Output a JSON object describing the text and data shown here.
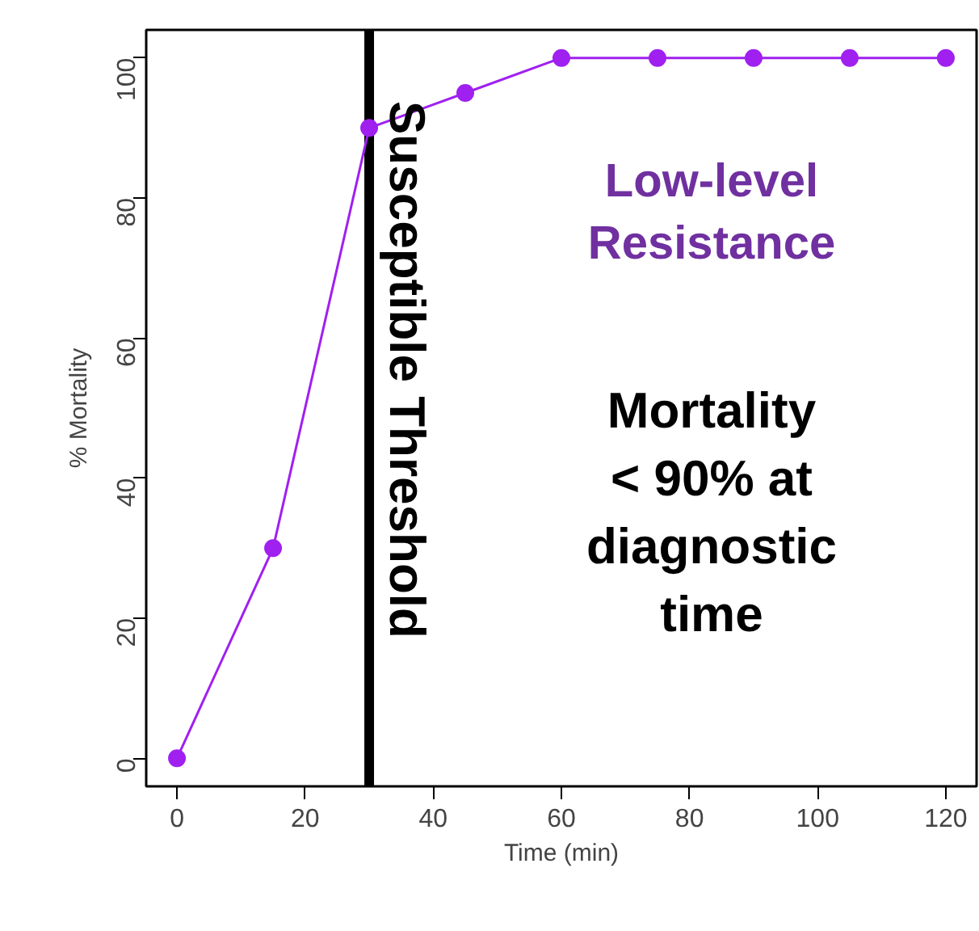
{
  "chart_data": {
    "type": "line",
    "xlabel": "Time (min)",
    "ylabel": "% Mortality",
    "x": [
      0,
      15,
      30,
      45,
      60,
      75,
      90,
      105,
      120
    ],
    "series": [
      {
        "color": "#a020f0",
        "values": [
          0,
          30,
          90,
          95,
          100,
          100,
          100,
          100,
          100
        ]
      }
    ],
    "xlim": [
      -4.8,
      124.8
    ],
    "ylim": [
      -4,
      104
    ],
    "xticks": [
      0,
      20,
      40,
      60,
      80,
      100,
      120
    ],
    "yticks": [
      0,
      20,
      40,
      60,
      80,
      100
    ],
    "marker": "circle",
    "line_style": "solid",
    "grid": false,
    "ref_lines": [
      {
        "axis": "x",
        "value": 30,
        "label": "Susceptible Threshold",
        "color": "#000000"
      }
    ],
    "annotations": [
      "Low-level\nResistance",
      "Mortality\n< 90% at\ndiagnostic\ntime"
    ]
  }
}
